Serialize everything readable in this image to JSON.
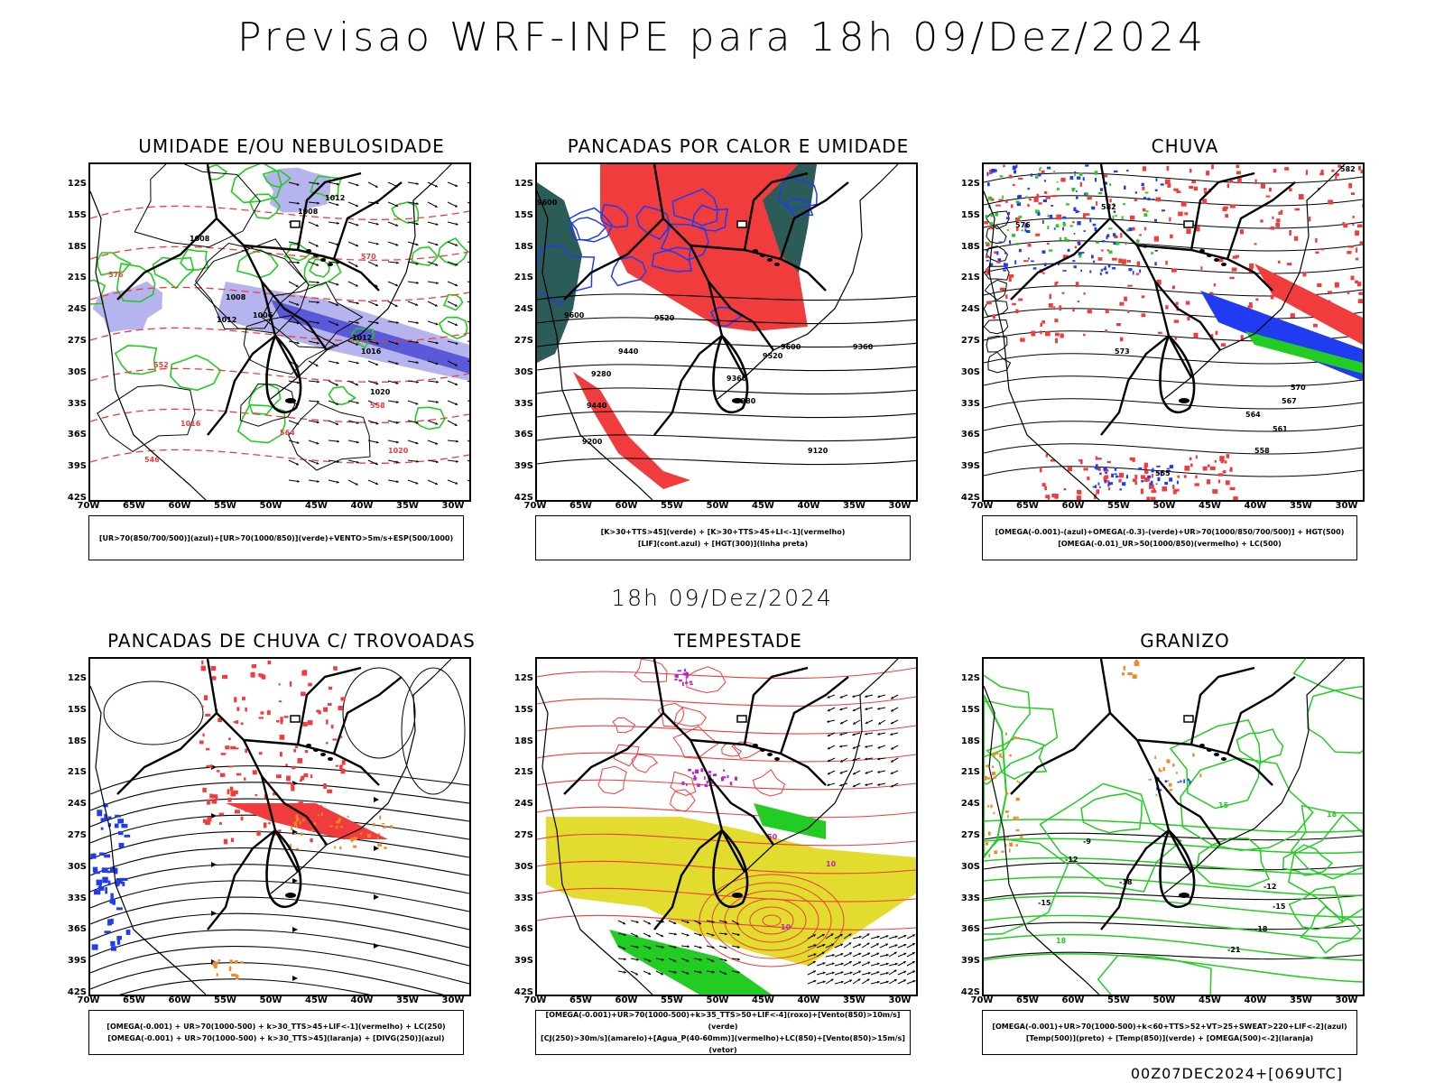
{
  "header": {
    "title": "Previsao WRF-INPE  para 18h 09/Dez/2024"
  },
  "mid_label": "18h 09/Dez/2024",
  "footer": "00Z07DEC2024+[069UTC]",
  "axes": {
    "lat_labels": [
      "12S",
      "15S",
      "18S",
      "21S",
      "24S",
      "27S",
      "30S",
      "33S",
      "36S",
      "39S",
      "42S"
    ],
    "lon_labels": [
      "70W",
      "65W",
      "60W",
      "55W",
      "50W",
      "45W",
      "40W",
      "35W",
      "30W"
    ]
  },
  "colors": {
    "red": "#f03c3c",
    "green": "#22cc22",
    "blue": "#1f3cf0",
    "lavender": "#b6b4ee",
    "yellow": "#e2dc2e",
    "teal": "#2c5c58",
    "orange": "#f08a28",
    "purple": "#c020c0"
  },
  "panels": [
    {
      "title": "UMIDADE E/OU NEBULOSIDADE",
      "legend": [
        "[UR>70(850/700/500)](azul)+[UR>70(1000/850)](verde)+VENTO>5m/s+ESP(500/1000)"
      ],
      "contour_labels": [
        "1012",
        "1008",
        "1008",
        "1008",
        "1012",
        "1006",
        "1012",
        "1016",
        "1020",
        "1020",
        "1016",
        "576",
        "570",
        "564",
        "558",
        "552",
        "546"
      ]
    },
    {
      "title": "PANCADAS POR CALOR E UMIDADE",
      "legend": [
        "[K>30+TTS>45](verde) + [K>30+TTS>45+LI<-1](vermelho)",
        "[LIF](cont.azul) + [HGT(300)](linha preta)"
      ],
      "contour_labels": [
        "9600",
        "9600",
        "9520",
        "9600",
        "9440",
        "9360",
        "9280",
        "9520",
        "9440",
        "9360",
        "9280",
        "9200",
        "9120"
      ]
    },
    {
      "title": "CHUVA",
      "legend": [
        "[OMEGA(-0.001)-(azul)+OMEGA(-0.3)-(verde)+UR>70(1000/850/700/500)] + HGT(500)",
        "[OMEGA(-0.01)_UR>50(1000/850)(vermelho) + LC(500)"
      ],
      "contour_labels": [
        "582",
        "582",
        "576",
        "573",
        "570",
        "567",
        "564",
        "561",
        "558",
        "555"
      ]
    },
    {
      "title": "PANCADAS DE CHUVA C/ TROVOADAS",
      "legend": [
        "[OMEGA(-0.001) + UR>70(1000-500) + k>30_TTS>45+LIF<-1](vermelho) + LC(250)",
        "[OMEGA(-0.001) + UR>70(1000-500) + k>30_TTS>45](laranja) + [DIVG(250)](azul)"
      ],
      "contour_labels": []
    },
    {
      "title": "TEMPESTADE",
      "legend": [
        "[OMEGA(-0.001)+UR>70(1000-500)+k>35_TTS>50+LIF<-4](roxo)+[Vento(850)>10m/s](verde)",
        "[CJ(250)>30m/s](amarelo)+[Agua_P(40-60mm)](vermelho)+LC(850)+[Vento(850)>15m/s](vetor)"
      ],
      "contour_labels": [
        "50",
        "10",
        "10"
      ]
    },
    {
      "title": "GRANIZO",
      "legend": [
        "[OMEGA(-0.001)+UR>70(1000-500)+k<60+TTS>52+VT>25+SWEAT>220+LIF<-2](azul)",
        "[Temp(500)](preto) + [Temp(850)](verde) + [OMEGA(500)<-2](laranja)"
      ],
      "contour_labels": [
        "-9",
        "-12",
        "-12",
        "-15",
        "-15",
        "-18",
        "-18",
        "-21",
        "15",
        "18",
        "18"
      ]
    }
  ]
}
